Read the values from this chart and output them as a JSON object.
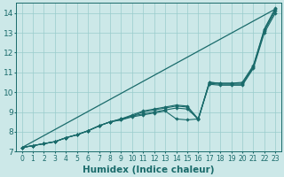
{
  "xlabel": "Humidex (Indice chaleur)",
  "xlim": [
    -0.5,
    23.5
  ],
  "ylim": [
    7,
    14.5
  ],
  "bg_color": "#cce8e8",
  "grid_color": "#99cccc",
  "line_color": "#1a6b6b",
  "straight_line": [
    [
      0,
      7.2
    ],
    [
      23,
      14.2
    ]
  ],
  "series": [
    {
      "x": [
        0,
        1,
        2,
        3,
        4,
        5,
        6,
        7,
        8,
        9,
        10,
        11,
        12,
        13,
        14,
        15,
        16,
        17,
        18,
        19,
        20,
        21,
        22,
        23
      ],
      "y": [
        7.2,
        7.3,
        7.4,
        7.5,
        7.7,
        7.85,
        8.05,
        8.3,
        8.5,
        8.65,
        8.85,
        9.05,
        9.15,
        9.25,
        9.35,
        9.3,
        8.65,
        10.5,
        10.45,
        10.45,
        10.5,
        11.35,
        13.2,
        14.25
      ]
    },
    {
      "x": [
        0,
        1,
        2,
        3,
        4,
        5,
        6,
        7,
        8,
        9,
        10,
        11,
        12,
        13,
        14,
        15,
        16,
        17,
        18,
        19,
        20,
        21,
        22,
        23
      ],
      "y": [
        7.2,
        7.3,
        7.4,
        7.5,
        7.7,
        7.85,
        8.05,
        8.3,
        8.5,
        8.65,
        8.8,
        8.9,
        9.0,
        9.1,
        9.2,
        9.15,
        8.65,
        10.45,
        10.4,
        10.4,
        10.4,
        11.25,
        13.1,
        14.1
      ]
    },
    {
      "x": [
        0,
        1,
        2,
        3,
        4,
        5,
        6,
        7,
        8,
        9,
        10,
        11,
        12,
        13,
        14,
        15,
        16,
        17,
        18,
        19,
        20,
        21,
        22,
        23
      ],
      "y": [
        7.2,
        7.3,
        7.4,
        7.5,
        7.7,
        7.85,
        8.05,
        8.3,
        8.5,
        8.6,
        8.75,
        8.85,
        8.95,
        9.05,
        8.65,
        8.6,
        8.65,
        10.4,
        10.35,
        10.35,
        10.35,
        11.2,
        13.0,
        14.0
      ]
    },
    {
      "x": [
        0,
        1,
        2,
        3,
        4,
        5,
        6,
        7,
        8,
        9,
        10,
        11,
        12,
        13,
        14,
        15,
        16,
        17,
        18,
        19,
        20,
        21,
        22,
        23
      ],
      "y": [
        7.2,
        7.3,
        7.4,
        7.5,
        7.7,
        7.85,
        8.05,
        8.3,
        8.5,
        8.6,
        8.8,
        9.0,
        9.1,
        9.2,
        9.3,
        9.25,
        8.6,
        10.5,
        10.45,
        10.45,
        10.45,
        11.3,
        13.15,
        14.2
      ]
    }
  ],
  "xtick_fontsize": 5.5,
  "ytick_fontsize": 6.5,
  "xlabel_fontsize": 7.5
}
